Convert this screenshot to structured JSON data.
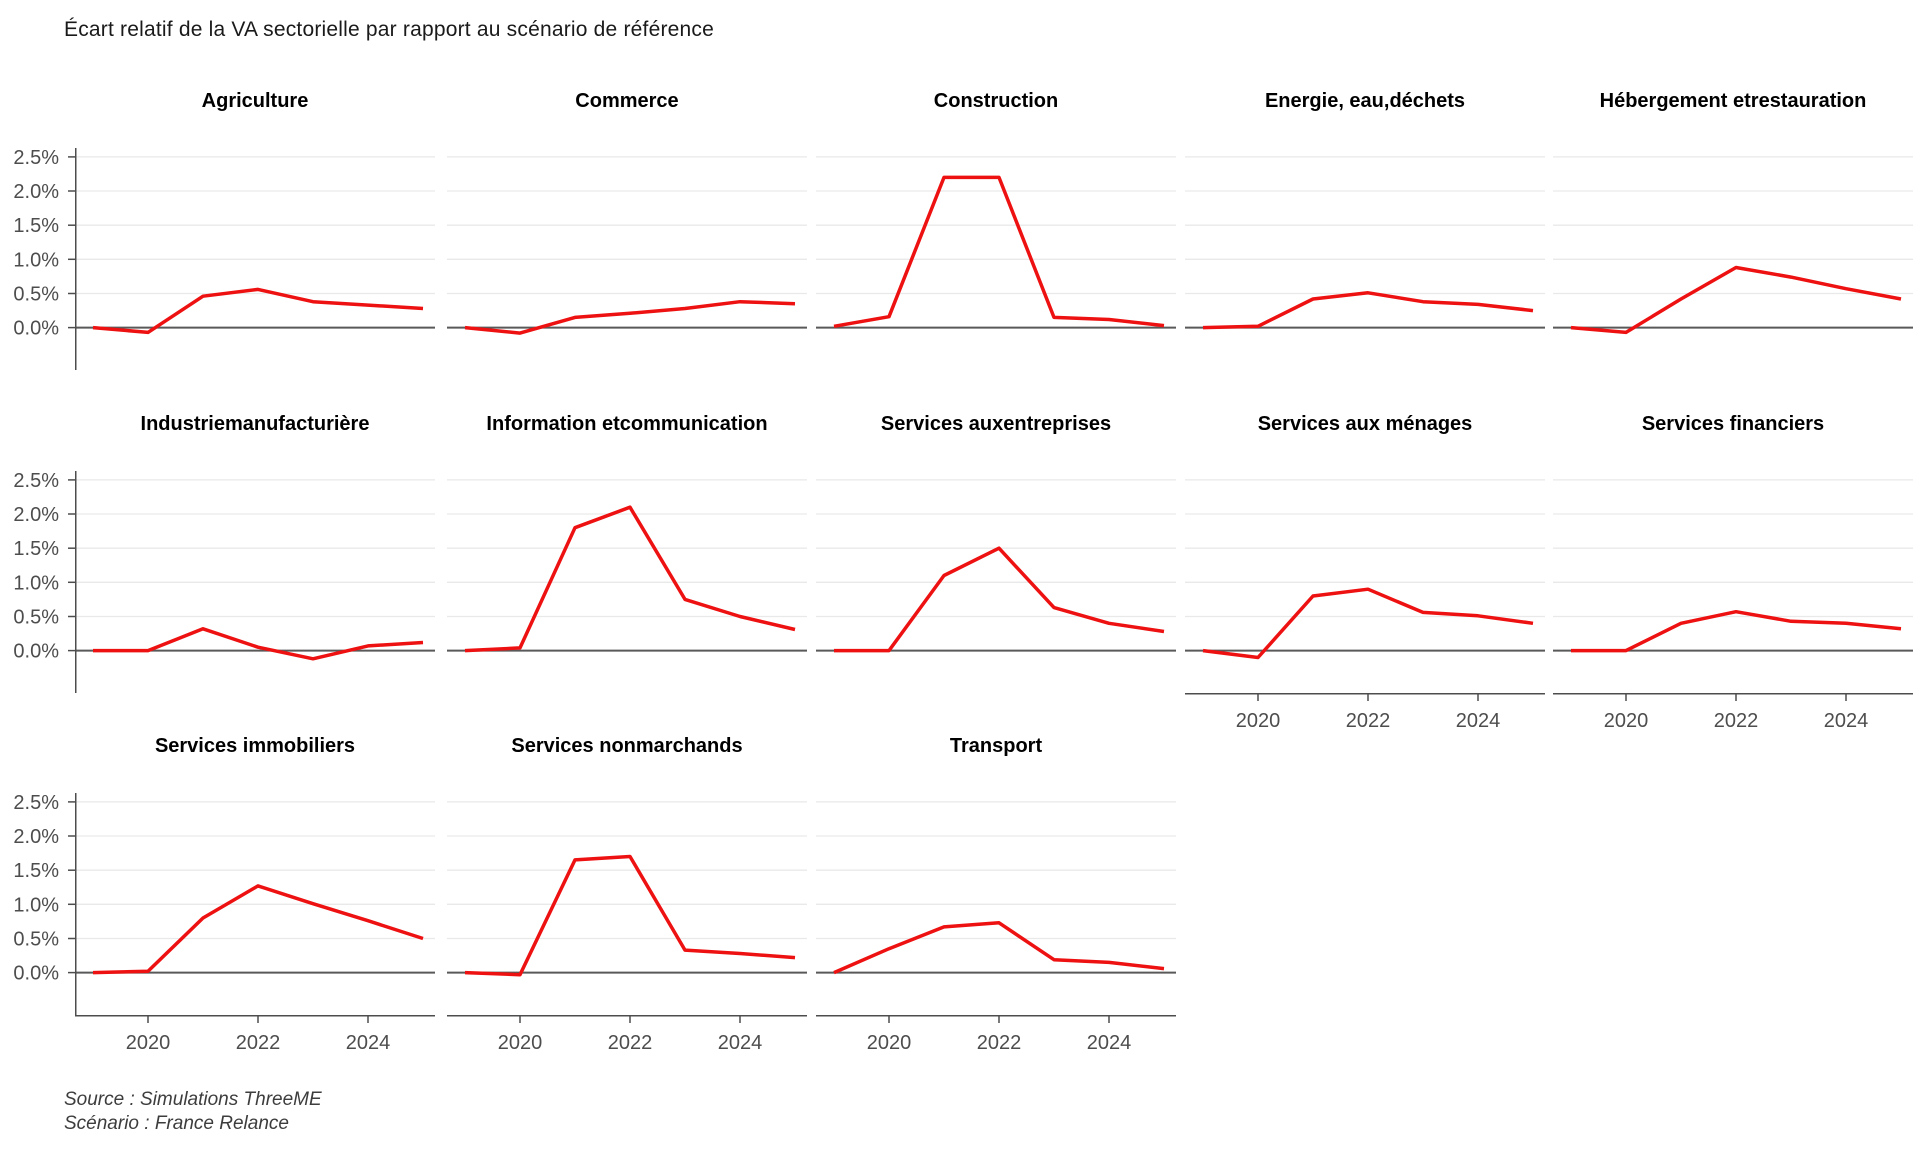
{
  "header": {
    "title": "Écart relatif de la VA sectorielle par rapport au scénario de référence"
  },
  "footer": {
    "source_label": "Source : Simulations ThreeME",
    "scenario_label": "Scénario : France Relance"
  },
  "colors": {
    "line": "#EE1111",
    "zero_line": "#595959",
    "grid_line": "#E9E9E9",
    "axis_line": "#4D4D4D",
    "tick_label": "#4D4D4D",
    "facet_title": "#000000"
  },
  "chart_data": {
    "type": "line",
    "title": "Écart relatif de la VA sectorielle par rapport au scénario de référence",
    "unit": "%",
    "x": [
      2019,
      2020,
      2021,
      2022,
      2023,
      2024,
      2025
    ],
    "x_tick_labels": [
      "2020",
      "2022",
      "2024"
    ],
    "x_tick_years": [
      2020,
      2022,
      2024
    ],
    "y_tick_labels": [
      "0.0%",
      "0.5%",
      "1.0%",
      "1.5%",
      "2.0%",
      "2.5%"
    ],
    "y_tick_values": [
      0,
      0.5,
      1,
      1.5,
      2,
      2.5
    ],
    "ylim": [
      -0.62,
      2.63
    ],
    "grid": {
      "rows": 3,
      "cols": 5
    },
    "legend": "none",
    "facets": [
      {
        "title": "Agriculture",
        "title_lines": [
          "Agriculture"
        ],
        "row": 0,
        "col": 0,
        "show_y_axis": true,
        "show_x_axis": false,
        "values": [
          0.0,
          -0.07,
          0.46,
          0.56,
          0.38,
          0.33,
          0.28
        ]
      },
      {
        "title": "Commerce",
        "title_lines": [
          "Commerce"
        ],
        "row": 0,
        "col": 1,
        "show_y_axis": false,
        "show_x_axis": false,
        "values": [
          0.0,
          -0.08,
          0.15,
          0.21,
          0.28,
          0.38,
          0.35
        ]
      },
      {
        "title": "Construction",
        "title_lines": [
          "Construction"
        ],
        "row": 0,
        "col": 2,
        "show_y_axis": false,
        "show_x_axis": false,
        "values": [
          0.02,
          0.16,
          2.2,
          2.2,
          0.15,
          0.12,
          0.03
        ]
      },
      {
        "title": "Energie, eau, déchets",
        "title_lines": [
          "Energie, eau,",
          "déchets"
        ],
        "row": 0,
        "col": 3,
        "show_y_axis": false,
        "show_x_axis": false,
        "values": [
          0.0,
          0.02,
          0.42,
          0.51,
          0.38,
          0.34,
          0.25
        ]
      },
      {
        "title": "Hébergement et restauration",
        "title_lines": [
          "Hébergement et",
          "restauration"
        ],
        "row": 0,
        "col": 4,
        "show_y_axis": false,
        "show_x_axis": false,
        "values": [
          0.0,
          -0.07,
          0.42,
          0.88,
          0.74,
          0.57,
          0.42
        ]
      },
      {
        "title": "Industrie manufacturière",
        "title_lines": [
          "Industrie",
          "manufacturière"
        ],
        "row": 1,
        "col": 0,
        "show_y_axis": true,
        "show_x_axis": false,
        "values": [
          0.0,
          0.0,
          0.32,
          0.05,
          -0.12,
          0.07,
          0.12
        ]
      },
      {
        "title": "Information et communication",
        "title_lines": [
          "Information et",
          "communication"
        ],
        "row": 1,
        "col": 1,
        "show_y_axis": false,
        "show_x_axis": false,
        "values": [
          0.0,
          0.04,
          1.8,
          2.1,
          0.75,
          0.5,
          0.31
        ]
      },
      {
        "title": "Services aux entreprises",
        "title_lines": [
          "Services aux",
          "entreprises"
        ],
        "row": 1,
        "col": 2,
        "show_y_axis": false,
        "show_x_axis": false,
        "values": [
          0.0,
          0.0,
          1.1,
          1.5,
          0.63,
          0.4,
          0.28
        ]
      },
      {
        "title": "Services aux ménages",
        "title_lines": [
          "Services aux ménages"
        ],
        "row": 1,
        "col": 3,
        "show_y_axis": false,
        "show_x_axis": true,
        "values": [
          0.0,
          -0.1,
          0.8,
          0.9,
          0.56,
          0.51,
          0.4
        ]
      },
      {
        "title": "Services financiers",
        "title_lines": [
          "Services financiers"
        ],
        "row": 1,
        "col": 4,
        "show_y_axis": false,
        "show_x_axis": true,
        "values": [
          0.0,
          0.0,
          0.4,
          0.57,
          0.43,
          0.4,
          0.32
        ]
      },
      {
        "title": "Services immobiliers",
        "title_lines": [
          "Services immobiliers"
        ],
        "row": 2,
        "col": 0,
        "show_y_axis": true,
        "show_x_axis": true,
        "values": [
          0.0,
          0.02,
          0.8,
          1.27,
          1.01,
          0.76,
          0.5
        ]
      },
      {
        "title": "Services non marchands",
        "title_lines": [
          "Services non",
          "marchands"
        ],
        "row": 2,
        "col": 1,
        "show_y_axis": false,
        "show_x_axis": true,
        "values": [
          0.0,
          -0.03,
          1.65,
          1.7,
          0.33,
          0.28,
          0.22
        ]
      },
      {
        "title": "Transport",
        "title_lines": [
          "Transport"
        ],
        "row": 2,
        "col": 2,
        "show_y_axis": false,
        "show_x_axis": true,
        "values": [
          0.0,
          0.35,
          0.67,
          0.73,
          0.19,
          0.15,
          0.06
        ]
      }
    ]
  }
}
